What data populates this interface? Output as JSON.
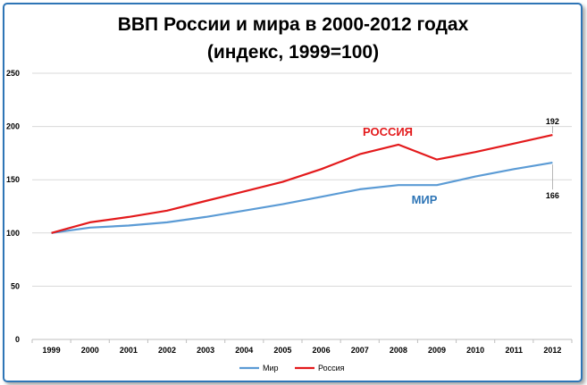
{
  "chart_data": {
    "type": "line",
    "title": "ВВП России и мира в 2000-2012 годах",
    "subtitle": "(индекс, 1999=100)",
    "xlabel": "",
    "ylabel": "",
    "ylim": [
      0,
      250
    ],
    "yticks": [
      0,
      50,
      100,
      150,
      200,
      250
    ],
    "grid": true,
    "categories": [
      "1999",
      "2000",
      "2001",
      "2002",
      "2003",
      "2004",
      "2005",
      "2006",
      "2007",
      "2008",
      "2009",
      "2010",
      "2011",
      "2012"
    ],
    "series": [
      {
        "name": "Мир",
        "color": "#5b9bd5",
        "values": [
          100,
          105,
          107,
          110,
          115,
          121,
          127,
          134,
          141,
          145,
          145,
          153,
          160,
          166
        ]
      },
      {
        "name": "Россия",
        "color": "#e31a1c",
        "values": [
          100,
          110,
          115,
          121,
          130,
          139,
          148,
          160,
          174,
          183,
          169,
          176,
          184,
          192
        ]
      }
    ],
    "annotations": [
      {
        "text": "РОССИЯ",
        "color": "#e31a1c",
        "series": "Россия"
      },
      {
        "text": "МИР",
        "color": "#2e75b6",
        "series": "Мир"
      }
    ],
    "data_labels": [
      {
        "text": "192",
        "series": "Россия",
        "index": 13
      },
      {
        "text": "166",
        "series": "Мир",
        "index": 13
      }
    ],
    "legend_position": "bottom"
  }
}
